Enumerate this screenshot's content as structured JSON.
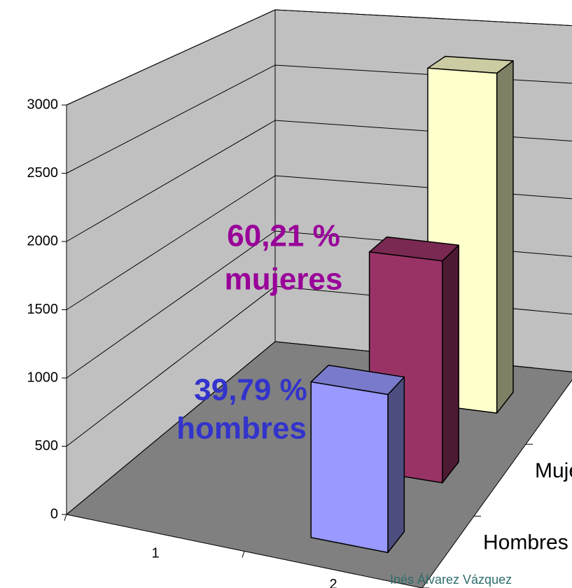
{
  "chart_data": {
    "type": "bar3d",
    "categories": [
      "1",
      "2"
    ],
    "series": [
      {
        "name": "Hombres",
        "color": "#9999ff",
        "values": [
          null,
          1114
        ]
      },
      {
        "name": "Mujeres",
        "color": "#993366",
        "values": [
          null,
          1686
        ]
      },
      {
        "name": null,
        "color": "#ffffcc",
        "values": [
          null,
          2800
        ]
      }
    ],
    "ylim": [
      0,
      3000
    ],
    "yticks": [
      0,
      500,
      1000,
      1500,
      2000,
      2500,
      3000
    ],
    "grid": true,
    "annotations": [
      {
        "text": "60,21 %",
        "color": "#990099"
      },
      {
        "text": "mujeres",
        "color": "#990099"
      },
      {
        "text": "39,79 %",
        "color": "#3333cc"
      },
      {
        "text": "hombres",
        "color": "#3333cc"
      }
    ],
    "credit": "Inés Álvarez Vázquez"
  }
}
